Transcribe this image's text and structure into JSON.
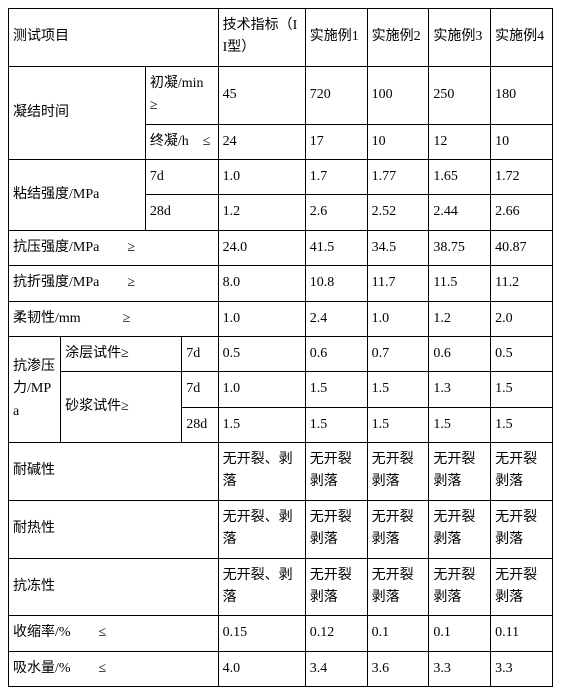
{
  "header": {
    "col1": "测试项目",
    "col2": "技术指标（II型）",
    "col3": "实施例1",
    "col4": "实施例2",
    "col5": "实施例3",
    "col6": "实施例4"
  },
  "r_settime": {
    "label": "凝结时间",
    "row1": {
      "sub": "初凝/min　≥",
      "spec": "45",
      "e1": "720",
      "e2": "100",
      "e3": "250",
      "e4": "180"
    },
    "row2": {
      "sub": "终凝/h　≤",
      "spec": "24",
      "e1": "17",
      "e2": "10",
      "e3": "12",
      "e4": "10"
    }
  },
  "r_bond": {
    "label": "粘结强度/MPa",
    "row1": {
      "sub": "7d",
      "spec": "1.0",
      "e1": "1.7",
      "e2": "1.77",
      "e3": "1.65",
      "e4": "1.72"
    },
    "row2": {
      "sub": "28d",
      "spec": "1.2",
      "e1": "2.6",
      "e2": "2.52",
      "e3": "2.44",
      "e4": "2.66"
    }
  },
  "r_comp": {
    "label": "抗压强度/MPa　　≥",
    "spec": "24.0",
    "e1": "41.5",
    "e2": "34.5",
    "e3": "38.75",
    "e4": "40.87"
  },
  "r_flex": {
    "label": "抗折强度/MPa　　≥",
    "spec": "8.0",
    "e1": "10.8",
    "e2": "11.7",
    "e3": "11.5",
    "e4": "11.2"
  },
  "r_tough": {
    "label": "柔韧性/mm　　　≥",
    "spec": "1.0",
    "e1": "2.4",
    "e2": "1.0",
    "e3": "1.2",
    "e4": "2.0"
  },
  "r_perm": {
    "label": "抗渗压力/MPa",
    "coat_label": "涂层试件≥",
    "mortar_label": "砂浆试件≥",
    "coat7d": {
      "d": "7d",
      "spec": "0.5",
      "e1": "0.6",
      "e2": "0.7",
      "e3": "0.6",
      "e4": "0.5"
    },
    "mortar7d": {
      "d": "7d",
      "spec": "1.0",
      "e1": "1.5",
      "e2": "1.5",
      "e3": "1.3",
      "e4": "1.5"
    },
    "mortar28d": {
      "d": "28d",
      "spec": "1.5",
      "e1": "1.5",
      "e2": "1.5",
      "e3": "1.5",
      "e4": "1.5"
    }
  },
  "r_alkali": {
    "label": "耐碱性",
    "spec": "无开裂、剥落",
    "e1": "无开裂剥落",
    "e2": "无开裂剥落",
    "e3": "无开裂剥落",
    "e4": "无开裂剥落"
  },
  "r_heat": {
    "label": "耐热性",
    "spec": "无开裂、剥落",
    "e1": "无开裂剥落",
    "e2": "无开裂剥落",
    "e3": "无开裂剥落",
    "e4": "无开裂剥落"
  },
  "r_frost": {
    "label": "抗冻性",
    "spec": "无开裂、剥落",
    "e1": "无开裂剥落",
    "e2": "无开裂剥落",
    "e3": "无开裂剥落",
    "e4": "无开裂剥落"
  },
  "r_shrink": {
    "label": "收缩率/%　　≤",
    "spec": "0.15",
    "e1": "0.12",
    "e2": "0.1",
    "e3": "0.1",
    "e4": "0.11"
  },
  "r_water": {
    "label": "吸水量/%　　≤",
    "spec": "4.0",
    "e1": "3.4",
    "e2": "3.6",
    "e3": "3.3",
    "e4": "3.3"
  }
}
